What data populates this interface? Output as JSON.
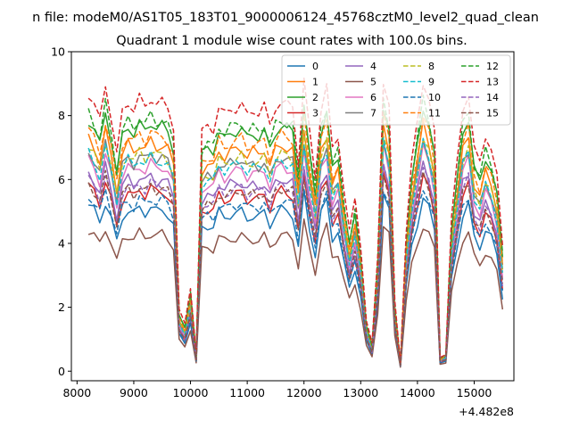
{
  "chart_data": {
    "type": "line",
    "suptitle": "n file: modeM0/AS1T05_183T01_9000006124_45768cztM0_level2_quad_clean",
    "title": "Quadrant 1 module wise count rates with 100.0s bins.",
    "xlabel": "",
    "ylabel": "",
    "x_offset_label": "+4.482e8",
    "xlim": [
      7900,
      15700
    ],
    "ylim": [
      -0.3,
      10
    ],
    "x_ticks": [
      8000,
      9000,
      10000,
      11000,
      12000,
      13000,
      14000,
      15000
    ],
    "x_tick_labels": [
      "8000",
      "9000",
      "10000",
      "11000",
      "12000",
      "13000",
      "14000",
      "15000"
    ],
    "y_ticks": [
      0,
      2,
      4,
      6,
      8,
      10
    ],
    "y_tick_labels": [
      "0",
      "2",
      "4",
      "6",
      "8",
      "10"
    ],
    "grid": false,
    "legend": {
      "placement": "top-right",
      "columns": 4
    },
    "x": [
      8200,
      8300,
      8400,
      8500,
      8600,
      8700,
      8800,
      8900,
      9000,
      9100,
      9200,
      9300,
      9400,
      9500,
      9600,
      9700,
      9800,
      9900,
      10000,
      10100,
      10200,
      10300,
      10400,
      10500,
      10600,
      10700,
      10800,
      10900,
      11000,
      11100,
      11200,
      11300,
      11400,
      11500,
      11600,
      11700,
      11800,
      11900,
      12000,
      12100,
      12200,
      12300,
      12400,
      12500,
      12600,
      12700,
      12800,
      12900,
      13000,
      13100,
      13200,
      13300,
      13400,
      13500,
      13600,
      13700,
      13800,
      13900,
      14000,
      14100,
      14200,
      14300,
      14400,
      14500,
      14600,
      14700,
      14800,
      14900,
      15000,
      15100,
      15200,
      15300,
      15400,
      15500
    ],
    "base_profile": [
      1.0,
      0.96,
      0.9,
      1.03,
      0.92,
      0.78,
      0.93,
      0.97,
      0.94,
      0.98,
      0.95,
      0.99,
      0.96,
      0.97,
      0.95,
      0.88,
      0.22,
      0.17,
      0.3,
      0.06,
      0.86,
      0.88,
      0.87,
      0.95,
      0.92,
      0.94,
      0.95,
      0.96,
      0.92,
      0.94,
      0.93,
      0.95,
      0.88,
      0.95,
      0.97,
      0.96,
      0.95,
      0.75,
      1.05,
      0.85,
      0.7,
      0.95,
      1.02,
      0.8,
      0.85,
      0.66,
      0.5,
      0.62,
      0.45,
      0.18,
      0.1,
      0.42,
      1.05,
      0.95,
      0.25,
      0.03,
      0.5,
      0.75,
      0.9,
      1.05,
      0.98,
      0.85,
      0.05,
      0.06,
      0.55,
      0.75,
      0.95,
      1.0,
      0.8,
      0.75,
      0.85,
      0.8,
      0.7,
      0.45
    ],
    "series": [
      {
        "name": "0",
        "level": 5.2,
        "color": "#1f77b4",
        "dash": "solid"
      },
      {
        "name": "1",
        "level": 7.3,
        "color": "#ff7f0e",
        "dash": "solid"
      },
      {
        "name": "2",
        "level": 7.9,
        "color": "#2ca02c",
        "dash": "solid"
      },
      {
        "name": "3",
        "level": 5.8,
        "color": "#d62728",
        "dash": "solid"
      },
      {
        "name": "4",
        "level": 6.2,
        "color": "#9467bd",
        "dash": "solid"
      },
      {
        "name": "5",
        "level": 4.4,
        "color": "#8c564b",
        "dash": "solid"
      },
      {
        "name": "6",
        "level": 6.6,
        "color": "#e377c2",
        "dash": "solid"
      },
      {
        "name": "7",
        "level": 6.9,
        "color": "#7f7f7f",
        "dash": "solid"
      },
      {
        "name": "8",
        "level": 7.0,
        "color": "#bcbd22",
        "dash": "dashed"
      },
      {
        "name": "9",
        "level": 6.8,
        "color": "#17becf",
        "dash": "dashed"
      },
      {
        "name": "10",
        "level": 5.5,
        "color": "#1f77b4",
        "dash": "dashed"
      },
      {
        "name": "11",
        "level": 7.6,
        "color": "#ff7f0e",
        "dash": "dashed"
      },
      {
        "name": "12",
        "level": 8.1,
        "color": "#2ca02c",
        "dash": "dashed"
      },
      {
        "name": "13",
        "level": 8.7,
        "color": "#d62728",
        "dash": "dashed"
      },
      {
        "name": "14",
        "level": 6.0,
        "color": "#9467bd",
        "dash": "dashed"
      },
      {
        "name": "15",
        "level": 5.9,
        "color": "#8c564b",
        "dash": "dashed"
      }
    ]
  }
}
